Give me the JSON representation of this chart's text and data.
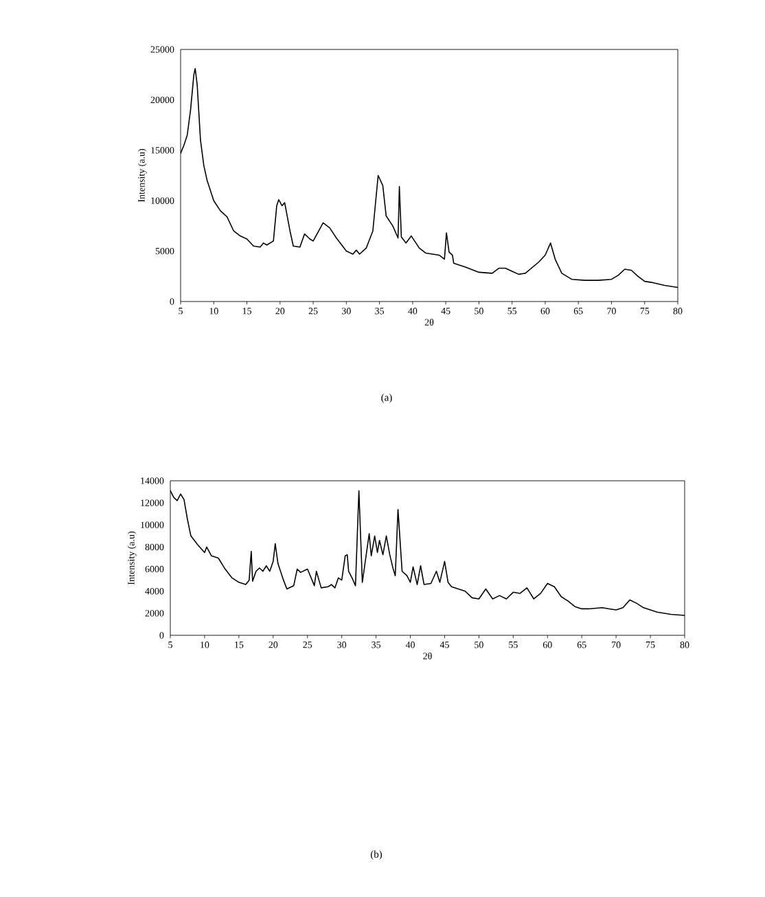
{
  "chart_data": [
    {
      "type": "line",
      "xlabel": "2θ",
      "ylabel": "Intensity (a.u)",
      "annotations": [
        "(a)"
      ],
      "color": "#000000",
      "xlim": [
        5,
        80
      ],
      "ylim": [
        0,
        25000
      ],
      "xticks": [
        5,
        10,
        15,
        20,
        25,
        30,
        35,
        40,
        45,
        50,
        55,
        60,
        65,
        70,
        75,
        80
      ],
      "yticks": [
        0,
        5000,
        10000,
        15000,
        20000,
        25000
      ],
      "x": [
        5,
        5.5,
        6,
        6.5,
        7,
        7.2,
        7.5,
        8,
        8.5,
        9,
        10,
        11,
        12,
        13,
        14,
        15,
        16,
        17,
        17.5,
        18,
        19,
        19.5,
        19.8,
        20.3,
        20.7,
        21.5,
        22,
        23,
        23.7,
        24.5,
        25,
        26.5,
        27.5,
        28.5,
        30,
        31,
        31.5,
        32,
        33,
        34,
        34.8,
        35.5,
        36,
        37,
        37.8,
        38,
        38.3,
        39,
        39.8,
        41,
        42,
        44,
        44.8,
        45.1,
        45.5,
        46,
        46.2,
        48,
        50,
        52,
        53,
        54,
        55,
        56,
        57,
        59,
        60,
        60.8,
        61.5,
        62.5,
        64,
        66,
        68,
        70,
        71,
        72,
        73,
        74,
        75,
        76,
        78,
        80
      ],
      "values": [
        14700,
        15500,
        16500,
        19000,
        22500,
        23100,
        21500,
        16000,
        13500,
        12000,
        10000,
        9000,
        8400,
        7000,
        6500,
        6200,
        5500,
        5400,
        5800,
        5600,
        6000,
        9500,
        10100,
        9500,
        9800,
        7000,
        5500,
        5400,
        6700,
        6200,
        6000,
        7800,
        7300,
        6300,
        5000,
        4700,
        5100,
        4700,
        5300,
        7000,
        12500,
        11500,
        8500,
        7500,
        6300,
        11400,
        6400,
        5800,
        6500,
        5300,
        4800,
        4600,
        4200,
        6800,
        4900,
        4600,
        3800,
        3400,
        2900,
        2800,
        3300,
        3300,
        3000,
        2700,
        2800,
        3900,
        4600,
        5800,
        4200,
        2800,
        2200,
        2100,
        2100,
        2200,
        2600,
        3200,
        3100,
        2500,
        2000,
        1900,
        1600,
        1400
      ]
    },
    {
      "type": "line",
      "xlabel": "2θ",
      "ylabel": "Intensity (a.u)",
      "annotations": [
        "(b)"
      ],
      "color": "#000000",
      "xlim": [
        5,
        80
      ],
      "ylim": [
        0,
        14000
      ],
      "xticks": [
        5,
        10,
        15,
        20,
        25,
        30,
        35,
        40,
        45,
        50,
        55,
        60,
        65,
        70,
        75,
        80
      ],
      "yticks": [
        0,
        2000,
        4000,
        6000,
        8000,
        10000,
        12000,
        14000
      ],
      "x": [
        5,
        5.5,
        6,
        6.5,
        7,
        7.5,
        8,
        9,
        10,
        10.3,
        11,
        12,
        12.5,
        13,
        14,
        15,
        16,
        16.5,
        16.8,
        17,
        17.5,
        18,
        18.5,
        19,
        19.5,
        20,
        20.3,
        20.7,
        21.5,
        22,
        23,
        23.5,
        24,
        25,
        26,
        26.3,
        27,
        28,
        28.5,
        29,
        29.5,
        30,
        30.5,
        30.8,
        31,
        31.5,
        32,
        32.5,
        33,
        33.5,
        34,
        34.3,
        34.8,
        35.2,
        35.5,
        36,
        36.5,
        37,
        37.5,
        37.8,
        38.2,
        38.8,
        39.5,
        40,
        40.4,
        41,
        41.5,
        42,
        43,
        43.8,
        44.3,
        45,
        45.5,
        46,
        47,
        48,
        49,
        50,
        51,
        52,
        53,
        54,
        55,
        56,
        57,
        58,
        59,
        60,
        61,
        62,
        63,
        64,
        65,
        66,
        68,
        69,
        70,
        71,
        72,
        73,
        74,
        76,
        78,
        80
      ],
      "values": [
        13100,
        12500,
        12200,
        12800,
        12300,
        10500,
        9000,
        8200,
        7500,
        8000,
        7200,
        7000,
        6500,
        6000,
        5200,
        4800,
        4600,
        5000,
        7600,
        4900,
        5800,
        6100,
        5800,
        6300,
        5800,
        6700,
        8300,
        6500,
        5000,
        4200,
        4500,
        6000,
        5700,
        6000,
        4500,
        5800,
        4300,
        4400,
        4600,
        4300,
        5200,
        5000,
        7200,
        7300,
        5800,
        5200,
        4500,
        13100,
        4800,
        7000,
        9200,
        7200,
        9000,
        7500,
        8600,
        7300,
        9000,
        7300,
        6000,
        5400,
        11400,
        5800,
        5400,
        4800,
        6200,
        4600,
        6300,
        4600,
        4700,
        5800,
        4800,
        6700,
        4800,
        4400,
        4200,
        4000,
        3400,
        3300,
        4200,
        3300,
        3600,
        3300,
        3900,
        3800,
        4300,
        3300,
        3800,
        4700,
        4400,
        3500,
        3100,
        2600,
        2400,
        2400,
        2500,
        2400,
        2300,
        2500,
        3200,
        2900,
        2500,
        2100,
        1900,
        1800
      ]
    }
  ]
}
